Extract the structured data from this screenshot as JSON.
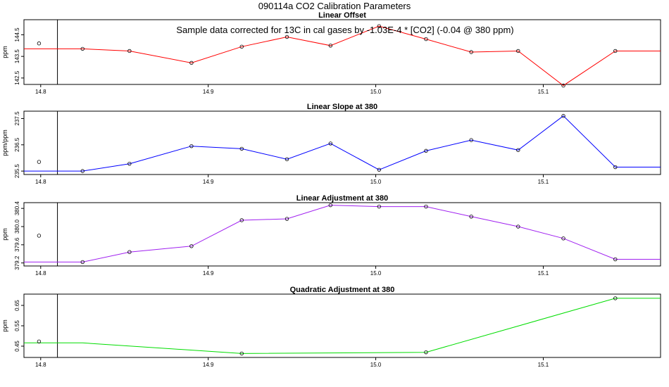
{
  "title": "090114a   CO2 Calibration Parameters",
  "x_axis": {
    "range": [
      14.79,
      15.17
    ],
    "ticks": [
      14.8,
      14.9,
      15.0,
      15.1
    ],
    "tick_labels": [
      "14.8",
      "14.9",
      "15.0",
      "15.1"
    ],
    "vline": 14.81
  },
  "chart_data": [
    {
      "type": "line",
      "title": "Linear Offset",
      "ylabel": "ppm",
      "color": "#ff0000",
      "ylim": [
        142.3,
        145.1
      ],
      "yticks": [
        142.5,
        143.5,
        144.5
      ],
      "ytick_labels": [
        "142.5",
        "143.5",
        "144.5"
      ],
      "annotation": "Sample data corrected for 13C in cal gases by -1.03E-4 * [CO2] (-0.04 @ 380 ppm)",
      "open_point": {
        "x": 14.799,
        "y": 144.1
      },
      "x": [
        14.79,
        14.825,
        14.853,
        14.89,
        14.92,
        14.947,
        14.973,
        15.002,
        15.03,
        15.057,
        15.085,
        15.112,
        15.143,
        15.17
      ],
      "y": [
        143.85,
        143.85,
        143.75,
        143.2,
        143.95,
        144.4,
        144.0,
        144.9,
        144.3,
        143.7,
        143.75,
        142.15,
        143.75,
        143.75
      ],
      "markers": [
        false,
        true,
        true,
        true,
        true,
        true,
        true,
        true,
        true,
        true,
        true,
        true,
        true,
        false
      ]
    },
    {
      "type": "line",
      "title": "Linear Slope at 380",
      "ylabel": "ppm/ppm",
      "color": "#0000ff",
      "ylim": [
        235.45,
        237.7
      ],
      "yticks": [
        235.5,
        236.5,
        237.5
      ],
      "ytick_labels": [
        "235.5",
        "236.5",
        "237.5"
      ],
      "open_point": {
        "x": 14.799,
        "y": 235.85
      },
      "x": [
        14.79,
        14.825,
        14.853,
        14.89,
        14.92,
        14.947,
        14.973,
        15.002,
        15.03,
        15.057,
        15.085,
        15.112,
        15.143,
        15.17
      ],
      "y": [
        235.5,
        235.5,
        235.78,
        236.45,
        236.35,
        235.95,
        236.55,
        235.55,
        236.27,
        236.68,
        236.3,
        237.6,
        235.65,
        235.65
      ],
      "markers": [
        false,
        true,
        true,
        true,
        true,
        true,
        true,
        true,
        true,
        true,
        true,
        true,
        true,
        false
      ]
    },
    {
      "type": "line",
      "title": "Linear Adjustment at 380",
      "ylabel": "ppm",
      "color": "#a020f0",
      "ylim": [
        379.18,
        380.48
      ],
      "yticks": [
        379.2,
        379.6,
        380.0,
        380.4
      ],
      "ytick_labels": [
        "379.2",
        "379.6",
        "380.0",
        "380.4"
      ],
      "open_point": {
        "x": 14.799,
        "y": 379.8
      },
      "x": [
        14.79,
        14.825,
        14.853,
        14.89,
        14.92,
        14.947,
        14.973,
        15.002,
        15.03,
        15.057,
        15.085,
        15.112,
        15.143,
        15.17
      ],
      "y": [
        379.22,
        379.22,
        379.44,
        379.57,
        380.14,
        380.17,
        380.47,
        380.44,
        380.44,
        380.22,
        380.0,
        379.74,
        379.28,
        379.28
      ],
      "markers": [
        false,
        true,
        true,
        true,
        true,
        true,
        true,
        true,
        true,
        true,
        true,
        true,
        true,
        false
      ]
    },
    {
      "type": "line",
      "title": "Quadratic Adjustment at 380",
      "ylabel": "ppm",
      "color": "#00dd00",
      "ylim": [
        0.405,
        0.695
      ],
      "yticks": [
        0.45,
        0.55,
        0.65
      ],
      "ytick_labels": [
        "0.45",
        "0.55",
        "0.65"
      ],
      "open_point": {
        "x": 14.799,
        "y": 0.473
      },
      "x": [
        14.79,
        14.825,
        14.92,
        15.03,
        15.143,
        15.17
      ],
      "y": [
        0.466,
        0.466,
        0.414,
        0.42,
        0.685,
        0.685
      ],
      "markers": [
        false,
        false,
        true,
        true,
        true,
        false
      ]
    }
  ]
}
